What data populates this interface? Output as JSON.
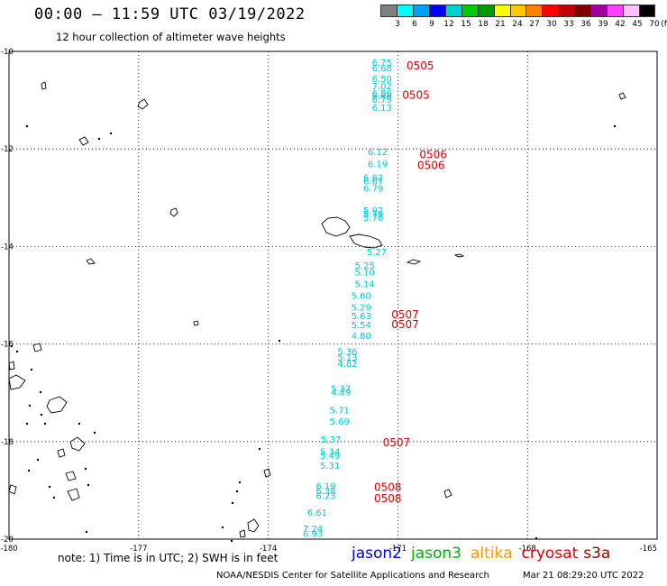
{
  "header": {
    "title": "00:00 – 11:59 UTC 03/19/2022",
    "subtitle": "12 hour collection of altimeter wave heights"
  },
  "color_scale": {
    "unit_label": "(ft)",
    "colors": [
      "#808080",
      "#00ffff",
      "#00a0ff",
      "#0000ff",
      "#00d0d0",
      "#00cc00",
      "#009900",
      "#ffff00",
      "#ffc800",
      "#ff8000",
      "#ff0000",
      "#c00000",
      "#800000",
      "#a000a0",
      "#ff40ff",
      "#ffc0ff",
      "#000000"
    ],
    "labels": [
      "3",
      "6",
      "9",
      "12",
      "15",
      "18",
      "21",
      "24",
      "27",
      "30",
      "33",
      "36",
      "39",
      "42",
      "45",
      "70"
    ]
  },
  "map": {
    "lon_range": [
      -180,
      -165
    ],
    "lat_range": [
      -20,
      -10
    ],
    "lon_ticks": [
      {
        "v": -180,
        "label": "-180"
      },
      {
        "v": -177,
        "label": "-177"
      },
      {
        "v": -174,
        "label": "-174"
      },
      {
        "v": -171,
        "label": "-171"
      },
      {
        "v": -168,
        "label": "-168"
      },
      {
        "v": -165,
        "label": "-165"
      }
    ],
    "lat_ticks": [
      {
        "v": -10,
        "label": "-10"
      },
      {
        "v": -12,
        "label": "-12"
      },
      {
        "v": -14,
        "label": "-14"
      },
      {
        "v": -16,
        "label": "-16"
      },
      {
        "v": -18,
        "label": "-18"
      },
      {
        "v": -20,
        "label": "-20"
      }
    ],
    "swh_color": "#00c8d8",
    "time_color": "#e00000",
    "swh_labels": [
      {
        "text": "6.75",
        "lon": -171.6,
        "lat": -10.22
      },
      {
        "text": "6.68",
        "lon": -171.6,
        "lat": -10.33
      },
      {
        "text": "6.50",
        "lon": -171.6,
        "lat": -10.55
      },
      {
        "text": "7.02",
        "lon": -171.6,
        "lat": -10.7
      },
      {
        "text": "6.86",
        "lon": -171.6,
        "lat": -10.85
      },
      {
        "text": "6.88",
        "lon": -171.6,
        "lat": -10.9
      },
      {
        "text": "6.79",
        "lon": -171.6,
        "lat": -10.98
      },
      {
        "text": "6.13",
        "lon": -171.6,
        "lat": -11.15
      },
      {
        "text": "6.12",
        "lon": -171.7,
        "lat": -12.05
      },
      {
        "text": "6.19",
        "lon": -171.7,
        "lat": -12.3
      },
      {
        "text": "6.62",
        "lon": -171.8,
        "lat": -12.58
      },
      {
        "text": "6.67",
        "lon": -171.8,
        "lat": -12.65
      },
      {
        "text": "6.79",
        "lon": -171.8,
        "lat": -12.8
      },
      {
        "text": "5.92",
        "lon": -171.8,
        "lat": -13.25
      },
      {
        "text": "5.79",
        "lon": -171.8,
        "lat": -13.33
      },
      {
        "text": "5.70",
        "lon": -171.8,
        "lat": -13.4
      },
      {
        "text": "5.27",
        "lon": -171.72,
        "lat": -14.1
      },
      {
        "text": "5.25",
        "lon": -172.0,
        "lat": -14.38
      },
      {
        "text": "5.10",
        "lon": -172.0,
        "lat": -14.52
      },
      {
        "text": "5.14",
        "lon": -172.0,
        "lat": -14.76
      },
      {
        "text": "5.60",
        "lon": -172.08,
        "lat": -15.0
      },
      {
        "text": "5.29",
        "lon": -172.08,
        "lat": -15.24
      },
      {
        "text": "5.63",
        "lon": -172.08,
        "lat": -15.42
      },
      {
        "text": "5.54",
        "lon": -172.08,
        "lat": -15.6
      },
      {
        "text": "4.80",
        "lon": -172.08,
        "lat": -15.82
      },
      {
        "text": "5.36",
        "lon": -172.4,
        "lat": -16.15
      },
      {
        "text": "5.13",
        "lon": -172.4,
        "lat": -16.27
      },
      {
        "text": "4.82",
        "lon": -172.4,
        "lat": -16.4
      },
      {
        "text": "5.37",
        "lon": -172.55,
        "lat": -16.9
      },
      {
        "text": "4.89",
        "lon": -172.55,
        "lat": -16.98
      },
      {
        "text": "5.71",
        "lon": -172.58,
        "lat": -17.35
      },
      {
        "text": "5.69",
        "lon": -172.58,
        "lat": -17.58
      },
      {
        "text": "5.37",
        "lon": -172.78,
        "lat": -17.95
      },
      {
        "text": "5.34",
        "lon": -172.8,
        "lat": -18.2
      },
      {
        "text": "5.49",
        "lon": -172.8,
        "lat": -18.28
      },
      {
        "text": "5.31",
        "lon": -172.8,
        "lat": -18.48
      },
      {
        "text": "6.19",
        "lon": -172.9,
        "lat": -18.9
      },
      {
        "text": "6.38",
        "lon": -172.9,
        "lat": -19.0
      },
      {
        "text": "6.23",
        "lon": -172.9,
        "lat": -19.1
      },
      {
        "text": "6.61",
        "lon": -173.1,
        "lat": -19.45
      },
      {
        "text": "7.24",
        "lon": -173.2,
        "lat": -19.78
      },
      {
        "text": "6.93",
        "lon": -173.2,
        "lat": -19.88
      }
    ],
    "time_labels": [
      {
        "text": "0505",
        "lon": -170.8,
        "lat": -10.28
      },
      {
        "text": "0505",
        "lon": -170.9,
        "lat": -10.88
      },
      {
        "text": "0506",
        "lon": -170.5,
        "lat": -12.1
      },
      {
        "text": "0506",
        "lon": -170.55,
        "lat": -12.32
      },
      {
        "text": "0507",
        "lon": -171.15,
        "lat": -15.38
      },
      {
        "text": "0507",
        "lon": -171.15,
        "lat": -15.58
      },
      {
        "text": "0507",
        "lon": -171.35,
        "lat": -18.0
      },
      {
        "text": "0508",
        "lon": -171.55,
        "lat": -18.92
      },
      {
        "text": "0508",
        "lon": -171.55,
        "lat": -19.15
      }
    ]
  },
  "footer": {
    "note": "note: 1) Time is in UTC; 2) SWH is in feet",
    "missions": [
      {
        "name": "jason2",
        "color": "#0000e0"
      },
      {
        "name": "jason3",
        "color": "#00b000"
      },
      {
        "name": "altika",
        "color": "#ff9900"
      },
      {
        "name": "cryosat",
        "color": "#e00000"
      },
      {
        "name": "s3a",
        "color": "#a00000"
      }
    ],
    "credit": "NOAA/NESDIS Center for Satellite Applications and Research",
    "timestamp": "Mar 21 08:29:20 UTC 2022"
  }
}
